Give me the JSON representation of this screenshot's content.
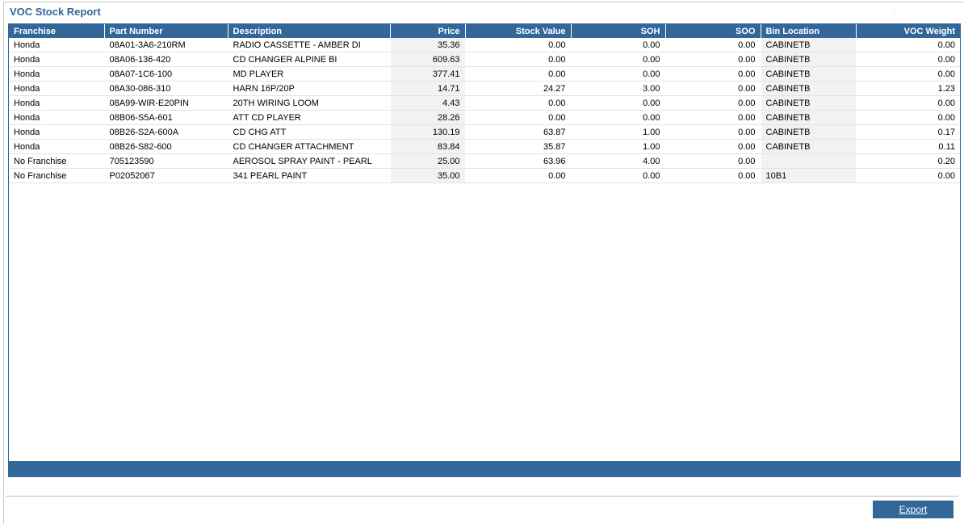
{
  "report": {
    "title": "VOC Stock Report"
  },
  "colors": {
    "accent": "#336699",
    "shade": "#f2f2f2"
  },
  "table": {
    "columns": [
      "Franchise",
      "Part Number",
      "Description",
      "Price",
      "Stock Value",
      "SOH",
      "SOO",
      "Bin Location",
      "VOC Weight"
    ],
    "rows": [
      [
        "Honda",
        "08A01-3A6-210RM",
        "RADIO CASSETTE - AMBER DI",
        "35.36",
        "0.00",
        "0.00",
        "0.00",
        "CABINETB",
        "0.00"
      ],
      [
        "Honda",
        "08A06-136-420",
        "CD CHANGER ALPINE BI",
        "609.63",
        "0.00",
        "0.00",
        "0.00",
        "CABINETB",
        "0.00"
      ],
      [
        "Honda",
        "08A07-1C6-100",
        "MD PLAYER",
        "377.41",
        "0.00",
        "0.00",
        "0.00",
        "CABINETB",
        "0.00"
      ],
      [
        "Honda",
        "08A30-086-310",
        "HARN 16P/20P",
        "14.71",
        "24.27",
        "3.00",
        "0.00",
        "CABINETB",
        "1.23"
      ],
      [
        "Honda",
        "08A99-WIR-E20PIN",
        "20TH WIRING LOOM",
        "4.43",
        "0.00",
        "0.00",
        "0.00",
        "CABINETB",
        "0.00"
      ],
      [
        "Honda",
        "08B06-S5A-601",
        "ATT CD PLAYER",
        "28.26",
        "0.00",
        "0.00",
        "0.00",
        "CABINETB",
        "0.00"
      ],
      [
        "Honda",
        "08B26-S2A-600A",
        "CD CHG ATT",
        "130.19",
        "63.87",
        "1.00",
        "0.00",
        "CABINETB",
        "0.17"
      ],
      [
        "Honda",
        "08B26-S82-600",
        "CD CHANGER ATTACHMENT",
        "83.84",
        "35.87",
        "1.00",
        "0.00",
        "CABINETB",
        "0.11"
      ],
      [
        "No Franchise",
        "705123590",
        "AEROSOL SPRAY PAINT - PEARL",
        "25.00",
        "63.96",
        "4.00",
        "0.00",
        "",
        "0.20"
      ],
      [
        "No Franchise",
        "P02052067",
        "341 PEARL PAINT",
        "35.00",
        "0.00",
        "0.00",
        "0.00",
        "10B1",
        "0.00"
      ]
    ]
  },
  "actions": {
    "export_label": "Export"
  }
}
